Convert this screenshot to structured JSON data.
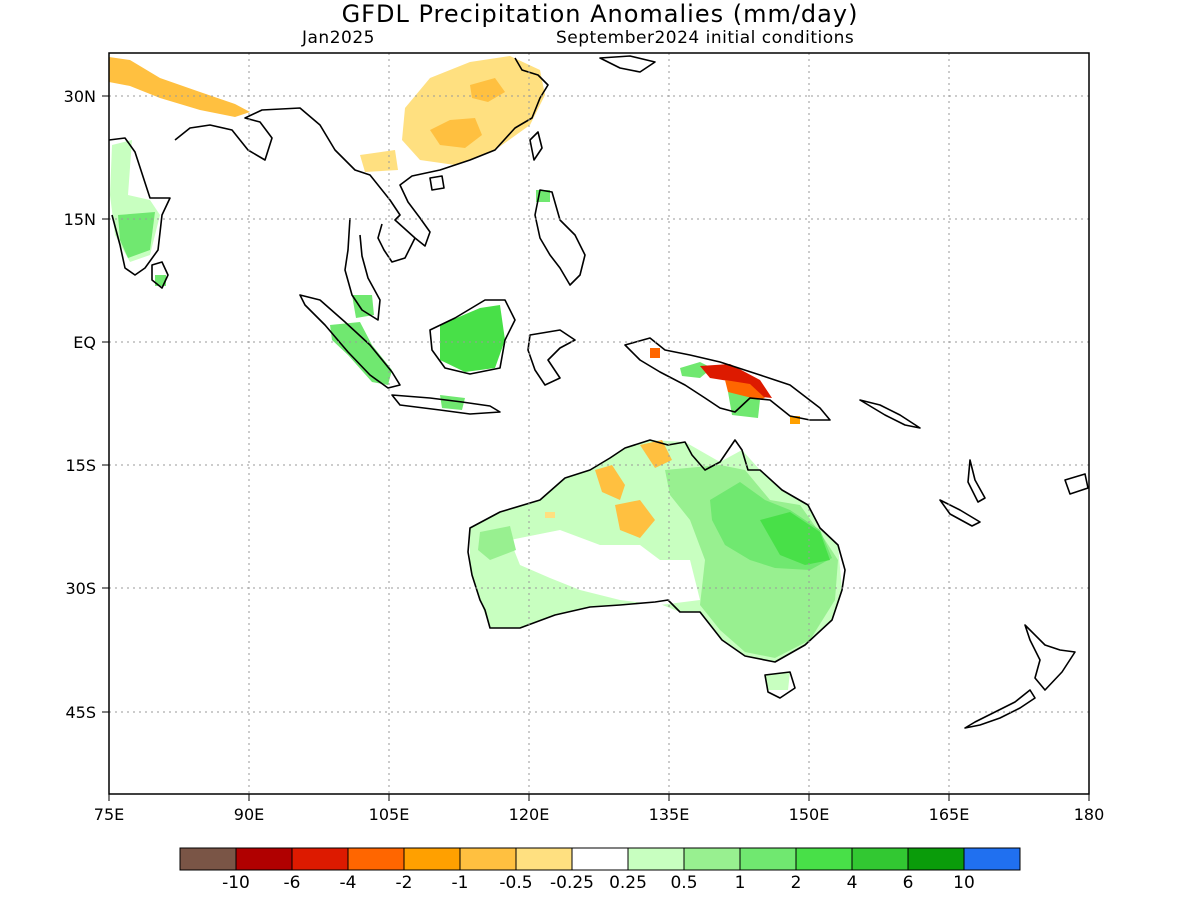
{
  "title": "GFDL Precipitation Anomalies (mm/day)",
  "valid_month": "Jan2025",
  "initial_conditions": "September2024 initial conditions",
  "lon_labels": [
    "75E",
    "90E",
    "105E",
    "120E",
    "135E",
    "150E",
    "165E",
    "180"
  ],
  "lat_labels": [
    "30N",
    "15N",
    "EQ",
    "15S",
    "30S",
    "45S"
  ],
  "colorbar": {
    "colors": [
      "#7a5546",
      "#b00000",
      "#dd1a00",
      "#ff6600",
      "#ffa000",
      "#ffc040",
      "#ffe080",
      "#ffffff",
      "#c8ffc0",
      "#98f090",
      "#70e870",
      "#48e048",
      "#32c832",
      "#0a9c0a",
      "#2070f0"
    ],
    "labels": [
      "-10",
      "-6",
      "-4",
      "-2",
      "-1",
      "-0.5",
      "-0.25",
      "0.25",
      "0.5",
      "1",
      "2",
      "4",
      "6",
      "10"
    ]
  }
}
